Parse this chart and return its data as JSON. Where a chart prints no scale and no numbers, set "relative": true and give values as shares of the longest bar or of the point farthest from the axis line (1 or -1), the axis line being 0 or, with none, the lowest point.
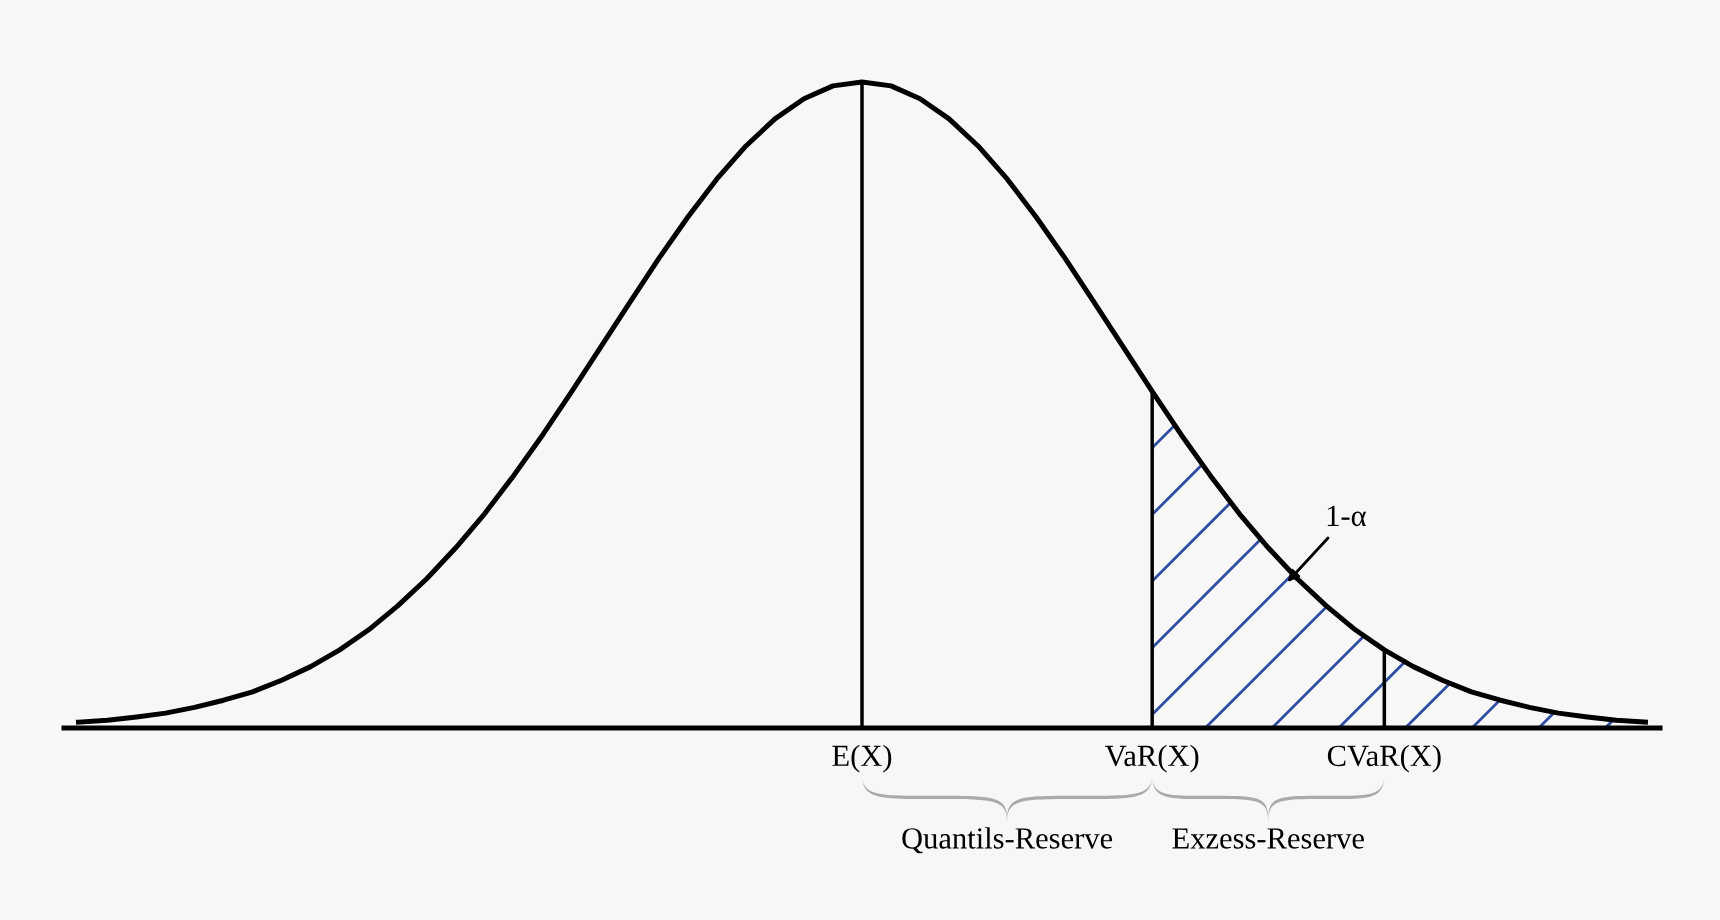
{
  "chart_data": {
    "type": "line",
    "relative": true,
    "grid": false,
    "marker": "none",
    "line_style": "solid",
    "categories": [
      null,
      null,
      null,
      null,
      null,
      null,
      null,
      null,
      null,
      null,
      null,
      null,
      null,
      null,
      null,
      null,
      null,
      null,
      null,
      null,
      null,
      null,
      null,
      null,
      null,
      null,
      null,
      "E(X)",
      null,
      null,
      null,
      null,
      null,
      null,
      null,
      null,
      null,
      "VaR(X)",
      null,
      null,
      null,
      null,
      null,
      null,
      null,
      "CVaR(X)",
      null,
      null,
      null,
      null,
      null,
      null,
      null,
      null,
      null
    ],
    "series": [
      {
        "color": "#000000",
        "values": [
          0.009,
          0.012,
          0.017,
          0.023,
          0.032,
          0.043,
          0.056,
          0.074,
          0.095,
          0.121,
          0.152,
          0.189,
          0.231,
          0.279,
          0.332,
          0.391,
          0.454,
          0.521,
          0.59,
          0.659,
          0.727,
          0.791,
          0.85,
          0.901,
          0.943,
          0.974,
          0.994,
          1,
          0.994,
          0.974,
          0.943,
          0.901,
          0.85,
          0.791,
          0.727,
          0.659,
          0.59,
          0.521,
          0.454,
          0.391,
          0.332,
          0.279,
          0.231,
          0.189,
          0.152,
          0.121,
          0.095,
          0.074,
          0.056,
          0.043,
          0.032,
          0.023,
          0.017,
          0.012,
          0.009
        ]
      },
      {
        "type": "area",
        "color": "#2e4fa0",
        "values": [
          null,
          null,
          null,
          null,
          null,
          null,
          null,
          null,
          null,
          null,
          null,
          null,
          null,
          null,
          null,
          null,
          null,
          null,
          null,
          null,
          null,
          null,
          null,
          null,
          null,
          null,
          null,
          null,
          null,
          null,
          null,
          null,
          null,
          null,
          null,
          null,
          null,
          0.521,
          0.454,
          0.391,
          0.332,
          0.279,
          0.231,
          0.189,
          0.152,
          0.121,
          0.095,
          0.074,
          0.056,
          0.043,
          0.032,
          0.023,
          0.017,
          0.012,
          0.009
        ]
      },
      {
        "type": "bar",
        "color": "#000000",
        "values": [
          null,
          null,
          null,
          null,
          null,
          null,
          null,
          null,
          null,
          null,
          null,
          null,
          null,
          null,
          null,
          null,
          null,
          null,
          null,
          null,
          null,
          null,
          null,
          null,
          null,
          null,
          null,
          1,
          null,
          null,
          null,
          null,
          null,
          null,
          null,
          null,
          null,
          0.521,
          null,
          null,
          null,
          null,
          null,
          null,
          null,
          0.121,
          null,
          null,
          null,
          null,
          null,
          null,
          null,
          null,
          null
        ]
      }
    ],
    "annotations": [
      "1-α",
      "Quantils-Reserve",
      "Exzess-Reserve"
    ]
  }
}
